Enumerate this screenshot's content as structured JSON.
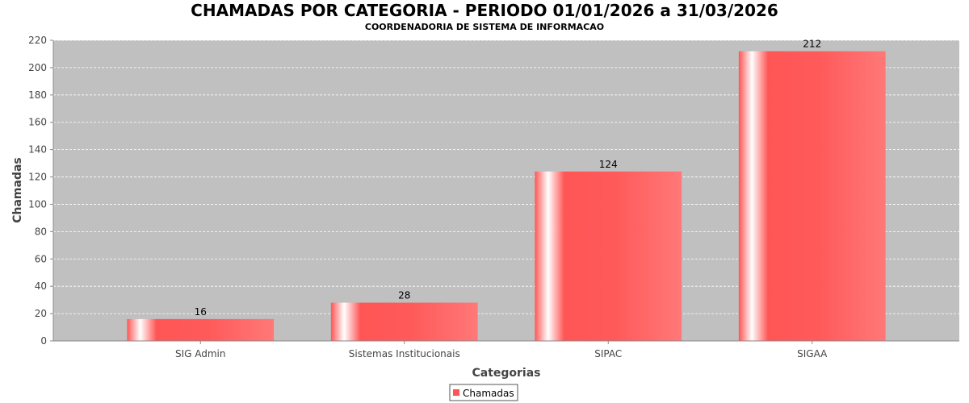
{
  "chart_data": {
    "type": "bar",
    "title": "CHAMADAS POR CATEGORIA - PERIODO 01/01/2026 a 31/03/2026",
    "subtitle": "COORDENADORIA DE SISTEMA DE INFORMACAO",
    "xlabel": "Categorias",
    "ylabel": "Chamadas",
    "categories": [
      "SIG Admin",
      "Sistemas Institucionais",
      "SIPAC",
      "SIGAA"
    ],
    "series": [
      {
        "name": "Chamadas",
        "values": [
          16,
          28,
          124,
          212
        ],
        "color": "#ff5555"
      }
    ],
    "ylim": [
      0,
      220
    ],
    "yticks": [
      0,
      20,
      40,
      60,
      80,
      100,
      120,
      140,
      160,
      180,
      200,
      220
    ],
    "grid": true,
    "legend_position": "bottom-center",
    "plot_background": "#c0c0c0"
  }
}
